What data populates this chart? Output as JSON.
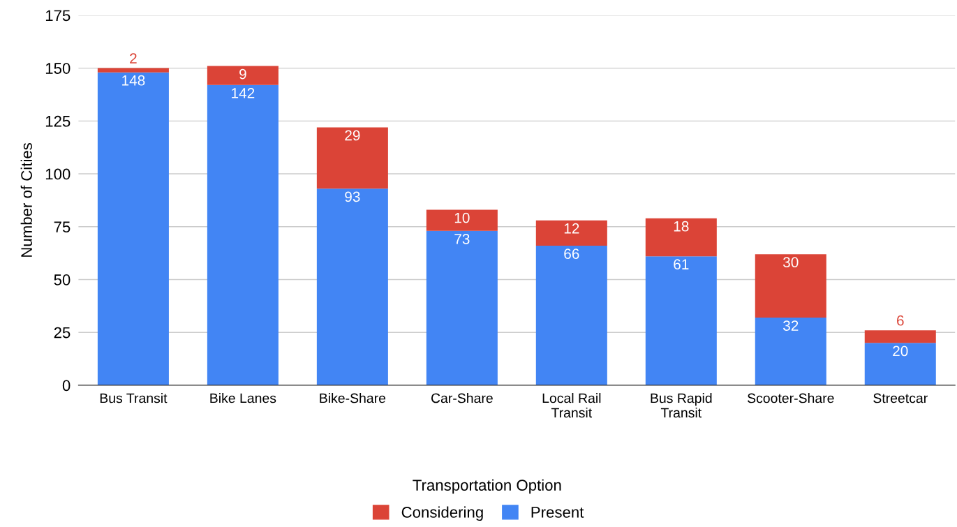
{
  "chart_data": {
    "type": "bar",
    "stacked": true,
    "categories": [
      "Bus Transit",
      "Bike Lanes",
      "Bike-Share",
      "Car-Share",
      "Local Rail Transit",
      "Bus Rapid Transit",
      "Scooter-Share",
      "Streetcar"
    ],
    "series": [
      {
        "name": "Present",
        "color": "#4285f4",
        "values": [
          148,
          142,
          93,
          73,
          66,
          61,
          32,
          20
        ]
      },
      {
        "name": "Considering",
        "color": "#db4437",
        "values": [
          2,
          9,
          29,
          10,
          12,
          18,
          30,
          6
        ]
      }
    ],
    "xlabel": "Transportation Option",
    "ylabel": "Number of Cities",
    "ylim": [
      0,
      175
    ],
    "yticks": [
      0,
      25,
      50,
      75,
      100,
      125,
      150,
      175
    ],
    "grid": "y",
    "legend": "bottom",
    "data_labels": true
  }
}
